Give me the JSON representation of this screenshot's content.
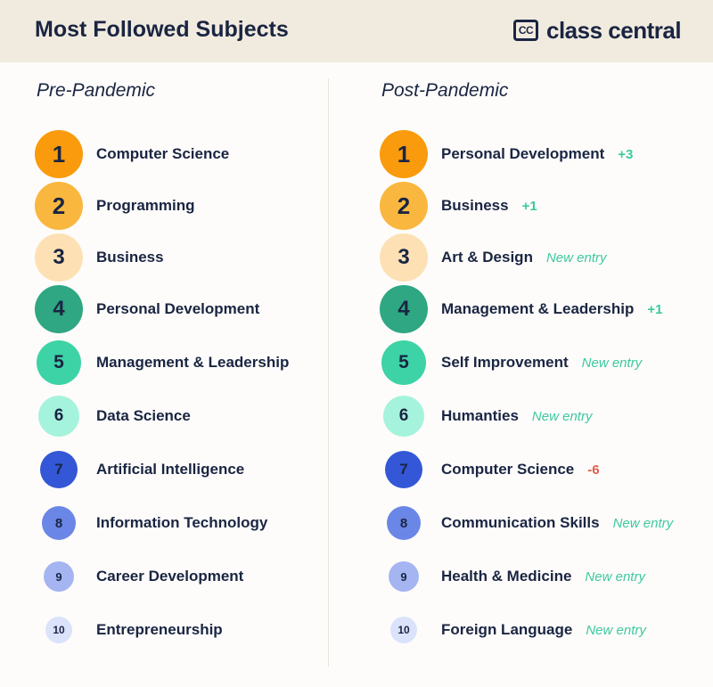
{
  "header": {
    "title": "Most Followed Subjects",
    "logo_mark": "CC",
    "logo_text": "class central",
    "logo_icon": "class-central-logo-icon"
  },
  "pre": {
    "heading": "Pre-Pandemic",
    "items": [
      {
        "rank": "1",
        "label": "Computer Science",
        "color": "#f99b0c"
      },
      {
        "rank": "2",
        "label": "Programming",
        "color": "#fab73f"
      },
      {
        "rank": "3",
        "label": "Business",
        "color": "#fde1b5"
      },
      {
        "rank": "4",
        "label": "Personal Development",
        "color": "#2ea782"
      },
      {
        "rank": "5",
        "label": "Management & Leadership",
        "color": "#3dd3a6"
      },
      {
        "rank": "6",
        "label": "Data Science",
        "color": "#a5f3dc"
      },
      {
        "rank": "7",
        "label": "Artificial Intelligence",
        "color": "#3357d6"
      },
      {
        "rank": "8",
        "label": "Information Technology",
        "color": "#6a86e6"
      },
      {
        "rank": "9",
        "label": "Career Development",
        "color": "#a4b5f1"
      },
      {
        "rank": "10",
        "label": "Entrepreneurship",
        "color": "#dbe3fb"
      }
    ]
  },
  "post": {
    "heading": "Post-Pandemic",
    "items": [
      {
        "rank": "1",
        "label": "Personal Development",
        "change": "+3",
        "change_type": "up",
        "color": "#f99b0c"
      },
      {
        "rank": "2",
        "label": "Business",
        "change": "+1",
        "change_type": "up",
        "color": "#fab73f"
      },
      {
        "rank": "3",
        "label": "Art & Design",
        "change": "New entry",
        "change_type": "new",
        "color": "#fde1b5"
      },
      {
        "rank": "4",
        "label": "Management & Leadership",
        "change": "+1",
        "change_type": "up",
        "color": "#2ea782"
      },
      {
        "rank": "5",
        "label": "Self Improvement",
        "change": "New entry",
        "change_type": "new",
        "color": "#3dd3a6"
      },
      {
        "rank": "6",
        "label": "Humanties",
        "change": "New entry",
        "change_type": "new",
        "color": "#a5f3dc"
      },
      {
        "rank": "7",
        "label": "Computer Science",
        "change": "-6",
        "change_type": "down",
        "color": "#3357d6"
      },
      {
        "rank": "8",
        "label": "Communication Skills",
        "change": "New entry",
        "change_type": "new",
        "color": "#6a86e6"
      },
      {
        "rank": "9",
        "label": "Health & Medicine",
        "change": "New entry",
        "change_type": "new",
        "color": "#a4b5f1"
      },
      {
        "rank": "10",
        "label": "Foreign Language",
        "change": "New entry",
        "change_type": "new",
        "color": "#dbe3fb"
      }
    ]
  }
}
